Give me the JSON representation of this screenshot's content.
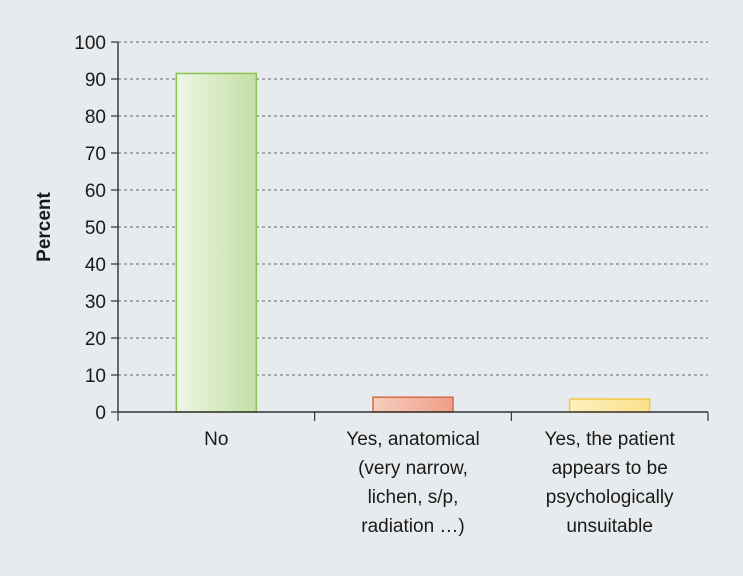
{
  "chart_data": {
    "type": "bar",
    "categories": [
      "No",
      "Yes, anatomical (very narrow, lichen, s/p, radiation …)",
      "Yes, the patient appears to be psychologically unsuitable"
    ],
    "category_lines": [
      [
        "No"
      ],
      [
        "Yes, anatomical",
        "(very narrow,",
        "lichen, s/p,",
        "radiation …)"
      ],
      [
        "Yes, the patient",
        "appears to be",
        "psychologically",
        "unsuitable"
      ]
    ],
    "values": [
      91.5,
      4,
      3.5
    ],
    "title": "",
    "xlabel": "",
    "ylabel": "Percent",
    "ylim": [
      0,
      100
    ],
    "yticks": [
      0,
      10,
      20,
      30,
      40,
      50,
      60,
      70,
      80,
      90,
      100
    ],
    "grid": true,
    "grid_style": "dotted",
    "legend": "none",
    "colors": {
      "background": "#e8ebed",
      "axis": "#333333",
      "grid": "#7f8388",
      "bars": [
        {
          "fill_top": "#eef6e4",
          "fill_bottom": "#c3dfa6",
          "stroke": "#8cc34f"
        },
        {
          "fill_top": "#f6cdbf",
          "fill_bottom": "#ee9f86",
          "stroke": "#d9694a"
        },
        {
          "fill_top": "#fdf0bf",
          "fill_bottom": "#fbe08a",
          "stroke": "#f2c94a"
        }
      ]
    }
  }
}
